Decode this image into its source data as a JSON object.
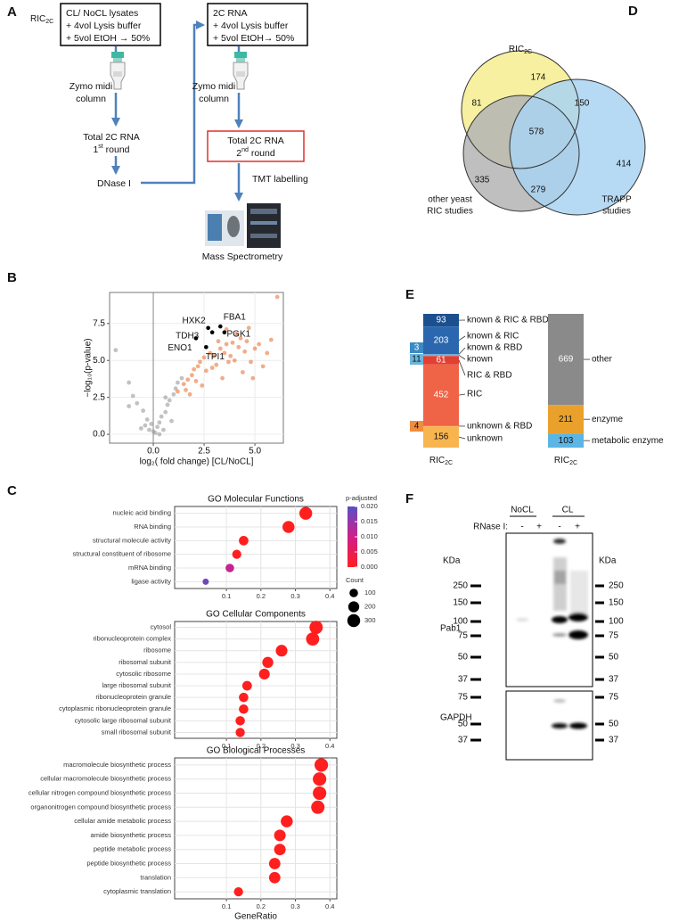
{
  "panel_a": {
    "label": "A",
    "sample": "RIC",
    "sample_sub": "2C",
    "box1": [
      "CL/  NoCL  lysates",
      "+ 4vol Lysis buffer",
      "+ 5vol  EtOH → 50%"
    ],
    "column": [
      "Zymo midi",
      "column"
    ],
    "round1": {
      "line1": "Total 2C RNA",
      "ordinal": "1",
      "suffix": "st",
      "word": " round"
    },
    "dnase": "DNase I",
    "box2": [
      "2C RNA",
      "+ 4vol Lysis buffer",
      "+ 5vol EtOH→ 50%"
    ],
    "round2": {
      "line1": "Total 2C RNA",
      "ordinal": "2",
      "suffix": "nd",
      "word": " round"
    },
    "tmt": "TMT labelling",
    "ms": "Mass Spectrometry"
  },
  "panel_b": {
    "label": "B"
  },
  "panel_c": {
    "label": "C"
  },
  "panel_d": {
    "label": "D",
    "top_label": "RIC",
    "top_label_sub": "2C",
    "set_labels": [
      [
        "other yeast",
        "RIC studies"
      ],
      [
        "TRAPP",
        "studies"
      ]
    ],
    "regions": [
      174,
      81,
      150,
      578,
      335,
      414,
      279
    ]
  },
  "panel_e": {
    "label": "E"
  },
  "panel_f": {
    "label": "F",
    "groups": [
      "NoCL",
      "CL"
    ],
    "treatment_label": "RNase I:",
    "lanes": [
      "-",
      "+",
      "-",
      "+"
    ],
    "unit": "KDa",
    "markers_top": [
      250,
      150,
      100,
      75,
      50,
      37
    ],
    "markers_bottom": [
      75,
      50,
      37
    ],
    "proteins": [
      "Pab1",
      "GAPDH"
    ]
  },
  "chart_data": [
    {
      "type": "scatter",
      "x_label": "log₂( fold change) [CL/NoCL]",
      "y_label": "−log₁₀(p-value)",
      "xlim": [
        -2.15,
        6.4
      ],
      "ylim": [
        -0.6,
        9.6
      ],
      "xticks": [
        {
          "value": 0,
          "label": "0.0"
        },
        2.5,
        {
          "value": 5,
          "label": "5.0"
        }
      ],
      "yticks": [
        {
          "value": 0,
          "label": "0.0"
        },
        2.5,
        {
          "value": 5,
          "label": "5.0"
        },
        7.5
      ],
      "grid": true,
      "vline": 0,
      "series": [
        {
          "color": "#9a9a9a",
          "x": [
            -1.85,
            -1.2,
            -1.0,
            -0.8,
            -1.2,
            -0.5,
            -0.3,
            -0.1,
            0.2,
            0.0,
            0.3,
            0.5,
            0.4,
            0.6,
            0.7,
            0.8,
            1.0,
            1.1,
            0.9,
            -0.6,
            1.2,
            0.6,
            0.3,
            -0.2,
            1.4,
            0.1,
            -0.4
          ],
          "values": [
            5.7,
            3.5,
            2.6,
            2.1,
            1.9,
            1.6,
            1.0,
            0.7,
            0.5,
            0.2,
            0.0,
            0.3,
            1.2,
            1.5,
            2.0,
            2.3,
            2.7,
            3.1,
            0.9,
            0.4,
            3.5,
            2.5,
            0.8,
            0.3,
            3.8,
            0.1,
            0.6
          ]
        },
        {
          "color": "#e8763a",
          "x": [
            1.2,
            1.5,
            1.7,
            1.9,
            2.0,
            2.2,
            2.3,
            2.5,
            2.6,
            2.8,
            3.0,
            3.1,
            3.3,
            3.5,
            3.6,
            3.8,
            3.9,
            4.0,
            4.2,
            4.3,
            4.5,
            4.6,
            4.8,
            5.0,
            5.2,
            5.4,
            5.6,
            5.8,
            6.1,
            4.4,
            3.4,
            2.4,
            1.8,
            2.9,
            3.7,
            4.9,
            1.6,
            2.1,
            3.2,
            4.1,
            3.6,
            4.7
          ],
          "values": [
            2.9,
            3.4,
            3.7,
            4.0,
            4.4,
            4.6,
            4.9,
            5.2,
            4.3,
            5.5,
            5.3,
            4.7,
            5.8,
            5.5,
            6.1,
            5.3,
            6.2,
            5.0,
            5.9,
            6.5,
            5.6,
            6.3,
            4.9,
            5.8,
            6.1,
            4.6,
            5.5,
            6.4,
            9.3,
            4.2,
            3.8,
            3.3,
            2.7,
            4.5,
            4.9,
            3.8,
            3.0,
            3.6,
            6.3,
            6.8,
            7.1,
            7.2
          ]
        },
        {
          "color": "#000000",
          "x": [
            2.7,
            3.3,
            2.9,
            3.5,
            2.1,
            2.6
          ],
          "values": [
            7.2,
            7.3,
            6.9,
            6.9,
            6.5,
            5.9
          ],
          "point_labels": [
            "HXK2",
            "FBA1",
            "TDH3",
            "PGK1",
            "ENO1",
            "TPI1"
          ]
        }
      ]
    },
    {
      "type": "dot",
      "title": "GO Molecular Functions",
      "categories": [
        "nucleic acid binding",
        "RNA binding",
        "structural molecule activity",
        "structural constituent of ribosome",
        "mRNA binding",
        "ligase activity"
      ],
      "values": [
        0.33,
        0.28,
        0.15,
        0.13,
        0.11,
        0.04
      ],
      "counts": [
        300,
        255,
        135,
        120,
        100,
        37
      ],
      "padj": [
        0,
        0,
        0,
        0,
        0.011,
        0.018
      ],
      "xlim": [
        -0.05,
        0.42
      ],
      "xticks": [
        0.1,
        0.2,
        0.3,
        0.4
      ],
      "grid": true,
      "color_legend": {
        "title": "p-adjusted",
        "colors": [
          "#ff1f1f",
          "#d01e8a",
          "#5a50c4"
        ],
        "lim": [
          0,
          0.02
        ],
        "ticks": [
          {
            "value": 0.02,
            "label": "0.020"
          },
          0.015,
          {
            "value": 0.01,
            "label": "0.010"
          },
          0.005,
          {
            "value": 0,
            "label": "0.000"
          }
        ]
      },
      "size_legend": {
        "title": "Count",
        "values": [
          100,
          200,
          300
        ]
      }
    },
    {
      "type": "dot",
      "title": "GO Cellular Components",
      "categories": [
        "cytosol",
        "ribonucleoprotein complex",
        "ribosome",
        "ribosomal subunit",
        "cytosolic ribosome",
        "large ribosomal subunit",
        "ribonucleoprotein granule",
        "cytoplasmic ribonucleoprotein granule",
        "cytosolic large ribosomal subunit",
        "small ribosomal subunit"
      ],
      "values": [
        0.36,
        0.35,
        0.26,
        0.22,
        0.21,
        0.16,
        0.15,
        0.15,
        0.14,
        0.14
      ],
      "counts": [
        325,
        318,
        236,
        200,
        190,
        140,
        132,
        132,
        128,
        122
      ],
      "padj": [
        0,
        0,
        0,
        0,
        0,
        0,
        0,
        0,
        0,
        0
      ],
      "xlim": [
        -0.05,
        0.42
      ],
      "xticks": [
        0.1,
        0.2,
        0.3,
        0.4
      ],
      "grid": true
    },
    {
      "type": "dot",
      "title": "GO Biological Processes",
      "categories": [
        "macromolecule biosynthetic process",
        "cellular macromolecule biosynthetic process",
        "cellular nitrogen compound biosynthetic process",
        "organonitrogen compound biosynthetic process",
        "cellular amide metabolic process",
        "amide biosynthetic process",
        "peptide metabolic process",
        "peptide biosynthetic process",
        "translation",
        "cytoplasmic translation"
      ],
      "values": [
        0.375,
        0.37,
        0.37,
        0.365,
        0.275,
        0.255,
        0.255,
        0.24,
        0.24,
        0.135
      ],
      "counts": [
        340,
        335,
        335,
        330,
        250,
        230,
        230,
        218,
        218,
        122
      ],
      "padj": [
        0,
        0,
        0,
        0,
        0,
        0,
        0,
        0,
        0,
        0
      ],
      "xlim": [
        -0.05,
        0.42
      ],
      "xticks": [
        0.1,
        0.2,
        0.3,
        0.4
      ],
      "grid": true,
      "x_label": "GeneRatio"
    },
    {
      "type": "bar",
      "stacked": true,
      "x_label": "RIC",
      "x_label_sub": "2C",
      "series": [
        {
          "name": "known & RIC & RBD",
          "color": "#1b4f8e",
          "values": [
            93
          ]
        },
        {
          "name": "known & RIC",
          "color": "#2b67ae",
          "values": [
            203
          ]
        },
        {
          "name": "known & RBD",
          "color": "#3b8ac4",
          "values": [
            3
          ]
        },
        {
          "name": "known",
          "color": "#6cb5dc",
          "values": [
            11
          ]
        },
        {
          "name": "RIC & RBD",
          "color": "#e23f33",
          "values": [
            61
          ]
        },
        {
          "name": "RIC",
          "color": "#ef6347",
          "values": [
            452
          ]
        },
        {
          "name": "unknown & RBD",
          "color": "#f08c3c",
          "values": [
            4
          ]
        },
        {
          "name": "unknown",
          "color": "#f8b54f",
          "values": [
            156
          ]
        }
      ]
    },
    {
      "type": "bar",
      "stacked": true,
      "x_label": "RIC",
      "x_label_sub": "2C",
      "series": [
        {
          "name": "other",
          "color": "#8a8a8a",
          "values": [
            669
          ]
        },
        {
          "name": "enzyme",
          "color": "#e9a12c",
          "values": [
            211
          ]
        },
        {
          "name": "metabolic enzyme",
          "color": "#5bb5e5",
          "values": [
            103
          ]
        }
      ]
    }
  ]
}
